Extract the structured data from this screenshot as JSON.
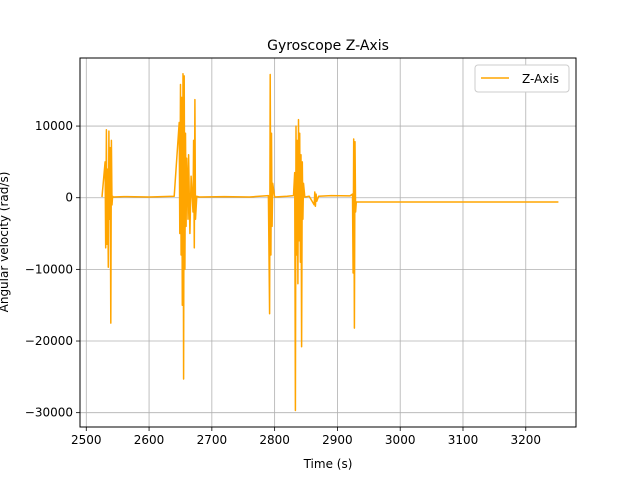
{
  "chart_data": {
    "type": "line",
    "title": "Gyroscope Z-Axis",
    "xlabel": "Time (s)",
    "ylabel": "Angular velocity (rad/s)",
    "xlim": [
      2490,
      3280
    ],
    "ylim": [
      -32000,
      19500
    ],
    "xticks": [
      2500,
      2600,
      2700,
      2800,
      2900,
      3000,
      3100,
      3200
    ],
    "yticks": [
      -30000,
      -20000,
      -10000,
      0,
      10000
    ],
    "ytick_labels": [
      "−30000",
      "−20000",
      "−10000",
      "0",
      "10000"
    ],
    "grid": true,
    "legend_position": "top-right",
    "series": [
      {
        "name": "Z-Axis",
        "color": "#FFA500",
        "x": [
          2525,
          2530,
          2531,
          2532,
          2533,
          2534,
          2535,
          2536,
          2537,
          2538,
          2539,
          2540,
          2541,
          2542,
          2543,
          2560,
          2600,
          2640,
          2648,
          2649,
          2650,
          2651,
          2652,
          2653,
          2654,
          2655,
          2656,
          2657,
          2658,
          2659,
          2660,
          2661,
          2662,
          2663,
          2665,
          2667,
          2670,
          2671,
          2672,
          2673,
          2674,
          2676,
          2680,
          2720,
          2760,
          2790,
          2792,
          2793,
          2794,
          2795,
          2796,
          2797,
          2800,
          2820,
          2830,
          2832,
          2833,
          2834,
          2835,
          2836,
          2837,
          2838,
          2839,
          2840,
          2841,
          2842,
          2843,
          2844,
          2845,
          2846,
          2848,
          2855,
          2863,
          2864,
          2865,
          2866,
          2867,
          2870,
          2890,
          2920,
          2924,
          2925,
          2926,
          2927,
          2928,
          2929,
          2930,
          3000,
          3100,
          3200,
          3252
        ],
        "y": [
          100,
          5000,
          -7000,
          9500,
          -6500,
          4000,
          -9700,
          9300,
          -3000,
          7000,
          -17500,
          8000,
          -1000,
          200,
          100,
          150,
          100,
          200,
          10500,
          -5000,
          15800,
          -8000,
          14000,
          -15000,
          17300,
          -25300,
          17000,
          -10000,
          9000,
          -4000,
          5500,
          2000,
          -3000,
          6000,
          -5000,
          3000,
          -2000,
          8000,
          -7000,
          13700,
          -3000,
          200,
          100,
          150,
          100,
          300,
          -16200,
          17200,
          -8000,
          9000,
          -4000,
          2000,
          100,
          200,
          300,
          3500,
          -29700,
          10000,
          -8000,
          8000,
          -12000,
          10900,
          -6000,
          9000,
          -9000,
          6000,
          -20800,
          5000,
          -3000,
          2000,
          100,
          200,
          -1000,
          800,
          -1200,
          500,
          -500,
          200,
          300,
          250,
          500,
          -10500,
          8200,
          -18200,
          7800,
          -2000,
          -600,
          -600,
          -600,
          -600,
          -600
        ]
      }
    ]
  }
}
